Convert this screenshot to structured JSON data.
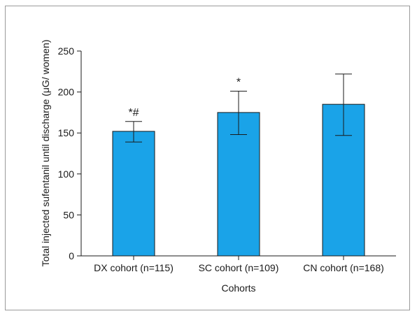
{
  "chart_data": {
    "type": "bar",
    "title": "",
    "xlabel": "Cohorts",
    "ylabel": "Total injected sufentanil until discharge (μG/ women)",
    "ylim": [
      0,
      250
    ],
    "yticks": [
      0,
      50,
      100,
      150,
      200,
      250
    ],
    "categories": [
      "DX cohort (n=115)",
      "SC cohort (n=109)",
      "CN cohort (n=168)"
    ],
    "values": [
      152,
      175,
      185
    ],
    "error_low": [
      139,
      148,
      147
    ],
    "error_high": [
      164,
      201,
      222
    ],
    "annotations": [
      "*#",
      "*",
      ""
    ],
    "grid": false,
    "legend": "none",
    "colors": {
      "bar_fill": "#1aa3e8",
      "bar_stroke": "#1a1a1a",
      "axis": "#1a1a1a"
    }
  }
}
